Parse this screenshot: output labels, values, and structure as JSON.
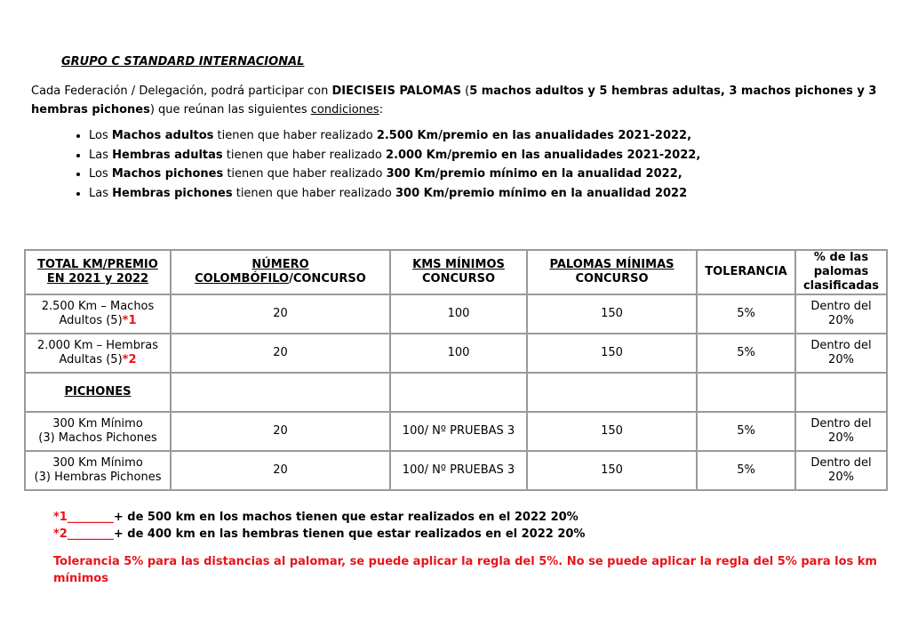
{
  "title": "GRUPO C STANDARD INTERNACIONAL",
  "intro": {
    "p1": "Cada Federación / Delegación, podrá participar con ",
    "b1": "DIECISEIS PALOMAS",
    "p2": " (",
    "b2": "5 machos adultos y 5 hembras adultas, 3 machos pichones y 3 hembras pichones",
    "p3": ") que reúnan las siguientes ",
    "u": "condiciones",
    "p4": ":"
  },
  "conditions": [
    {
      "a": "Los ",
      "b": "Machos adultos",
      "c": " tienen que haber realizado ",
      "d": "2.500 Km/premio en las anualidades 2021-2022,"
    },
    {
      "a": "Las ",
      "b": "Hembras adultas",
      "c": " tienen que haber realizado ",
      "d": "2.000 Km/premio en las anualidades 2021-2022,"
    },
    {
      "a": "Los ",
      "b": "Machos pichones",
      "c": " tienen que haber realizado ",
      "d": "300 Km/premio mínimo en la anualidad 2022,"
    },
    {
      "a": "Las ",
      "b": "Hembras pichones",
      "c": " tienen que haber realizado ",
      "d": "300 Km/premio mínimo en la anualidad 2022"
    }
  ],
  "table": {
    "headers": {
      "h1a": "TOTAL KM/PREMIO",
      "h1b": "EN 2021 y 2022",
      "h2a": "NÚMERO",
      "h2b": "COLOMBÓFILO",
      "h2c": "/CONCURSO",
      "h3a": "KMS MÍNIMOS",
      "h3b": "CONCURSO",
      "h4a": "PALOMAS MÍNIMAS",
      "h4b": "CONCURSO",
      "h5": "TOLERANCIA",
      "h6a": "% de las",
      "h6b": "palomas",
      "h6c": "clasificadas"
    },
    "rows": [
      {
        "l1": "2.500 Km – Machos",
        "l2": "Adultos (5)",
        "mark": "*1",
        "num": "20",
        "kms": "100",
        "pal": "150",
        "tol": "5%",
        "p1": "Dentro del",
        "p2": "20%"
      },
      {
        "l1": "2.000 Km – Hembras",
        "l2": "Adultas (5)",
        "mark": "*2",
        "num": "20",
        "kms": "100",
        "pal": "150",
        "tol": "5%",
        "p1": "Dentro del",
        "p2": "20%"
      },
      {
        "section": "PICHONES"
      },
      {
        "l1": "300 Km Mínimo",
        "l2": "(3) Machos Pichones",
        "num": "20",
        "kms": "100/ Nº PRUEBAS 3",
        "pal": "150",
        "tol": "5%",
        "p1": "Dentro del",
        "p2": "20%"
      },
      {
        "l1": "300 Km Mínimo",
        "l2": "(3) Hembras Pichones",
        "num": "20",
        "kms": "100/ Nº PRUEBAS 3",
        "pal": "150",
        "tol": "5%",
        "p1": "Dentro del",
        "p2": "20%"
      }
    ]
  },
  "notes": [
    {
      "mark": "*1",
      "line": "________",
      "text": "+ de 500 km en los machos tienen que estar realizados en el 2022 20%"
    },
    {
      "mark": "*2",
      "line": "________",
      "text": "+ de 400 km en las hembras tienen que estar realizados en el 2022 20%"
    }
  ],
  "tolerance_note": "Tolerancia 5% para las distancias al palomar, se puede aplicar la regla del 5%. No se puede aplicar la regla del 5% para los km mínimos",
  "colors": {
    "accent_red": "#e8141b",
    "table_border": "#9a9a9a"
  }
}
